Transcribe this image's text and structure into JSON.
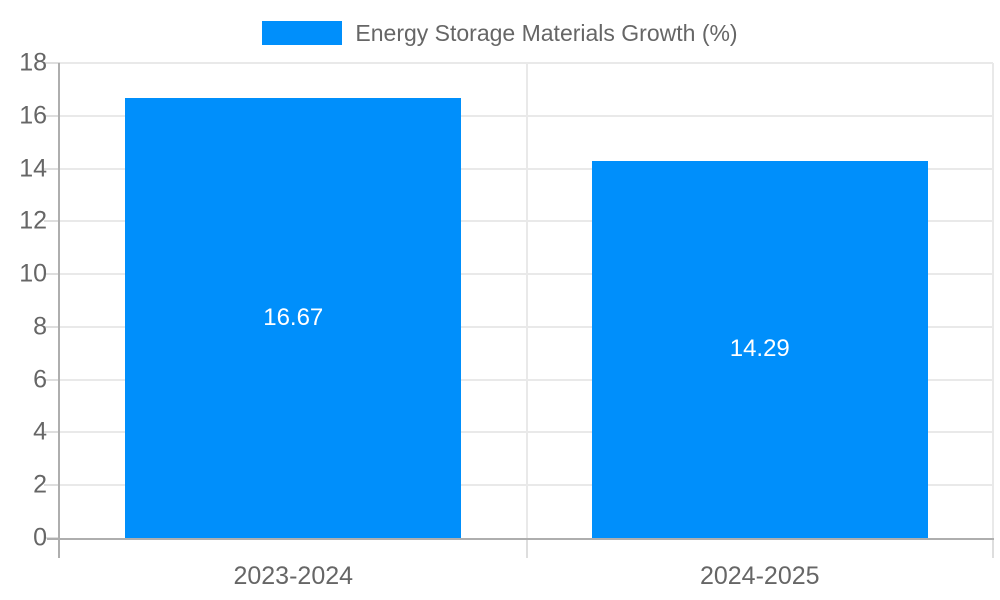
{
  "chart_data": {
    "type": "bar",
    "title": "",
    "legend": "Energy Storage Materials Growth (%)",
    "legend_position": "top",
    "categories": [
      "2023-2024",
      "2024-2025"
    ],
    "series": [
      {
        "name": "Energy Storage Materials Growth (%)",
        "values": [
          16.67,
          14.29
        ],
        "labels": [
          "16.67",
          "14.29"
        ]
      }
    ],
    "xlabel": "",
    "ylabel": "",
    "ylim": [
      0,
      18
    ],
    "yticks": [
      0,
      2,
      4,
      6,
      8,
      10,
      12,
      14,
      16,
      18
    ],
    "grid": true,
    "colors": {
      "bar": "#008FFB",
      "grid": "#e9e9e9",
      "axis": "#aeaeae",
      "tick": "#dedede",
      "axis_text": "#666666",
      "bar_label_text": "#ffffff",
      "background": "#ffffff"
    }
  }
}
